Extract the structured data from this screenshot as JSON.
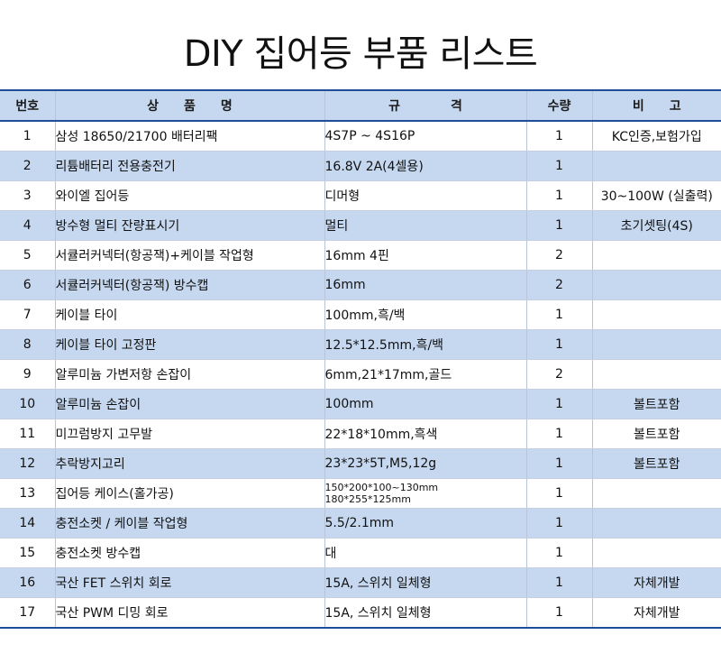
{
  "title": "DIY 집어등 부품 리스트",
  "headers": {
    "no": "번호",
    "name": "상　　품　　명",
    "spec": "규　　　　격",
    "qty": "수량",
    "note": "비　　고"
  },
  "rows": [
    {
      "no": "1",
      "name": "삼성 18650/21700 배터리팩",
      "spec": "4S7P ~ 4S16P",
      "qty": "1",
      "note": "KC인증,보험가입"
    },
    {
      "no": "2",
      "name": "리튬배터리 전용충전기",
      "spec": "16.8V 2A(4셀용)",
      "qty": "1",
      "note": ""
    },
    {
      "no": "3",
      "name": "와이엘 집어등",
      "spec": "디머형",
      "qty": "1",
      "note": "30~100W (실출력)"
    },
    {
      "no": "4",
      "name": "방수형 멀티 잔량표시기",
      "spec": "멀티",
      "qty": "1",
      "note": "초기셋팅(4S)"
    },
    {
      "no": "5",
      "name": "서큘러커넥터(항공잭)+케이블 작업형",
      "spec": "16mm 4핀",
      "qty": "2",
      "note": ""
    },
    {
      "no": "6",
      "name": "서큘러커넥터(항공잭) 방수캡",
      "spec": "16mm",
      "qty": "2",
      "note": ""
    },
    {
      "no": "7",
      "name": "케이블 타이",
      "spec": "100mm,흑/백",
      "qty": "1",
      "note": ""
    },
    {
      "no": "8",
      "name": "케이블 타이 고정판",
      "spec": "12.5*12.5mm,흑/백",
      "qty": "1",
      "note": ""
    },
    {
      "no": "9",
      "name": "알루미늄 가변저항 손잡이",
      "spec": "6mm,21*17mm,골드",
      "qty": "2",
      "note": ""
    },
    {
      "no": "10",
      "name": "알루미늄 손잡이",
      "spec": "100mm",
      "qty": "1",
      "note": "볼트포함"
    },
    {
      "no": "11",
      "name": "미끄럼방지 고무발",
      "spec": "22*18*10mm,흑색",
      "qty": "1",
      "note": "볼트포함"
    },
    {
      "no": "12",
      "name": "추락방지고리",
      "spec": "23*23*5T,M5,12g",
      "qty": "1",
      "note": "볼트포함"
    },
    {
      "no": "13",
      "name": "집어등 케이스(홀가공)",
      "spec": "150*200*100~130mm",
      "spec2": "180*255*125mm",
      "qty": "1",
      "note": ""
    },
    {
      "no": "14",
      "name": "충전소켓 / 케이블 작업형",
      "spec": "5.5/2.1mm",
      "qty": "1",
      "note": ""
    },
    {
      "no": "15",
      "name": "충전소켓 방수캡",
      "spec": "대",
      "qty": "1",
      "note": ""
    },
    {
      "no": "16",
      "name": "국산 FET 스위치 회로",
      "spec": "15A, 스위치 일체형",
      "qty": "1",
      "note": "자체개발"
    },
    {
      "no": "17",
      "name": "국산 PWM 디밍 회로",
      "spec": "15A, 스위치 일체형",
      "qty": "1",
      "note": "자체개발"
    }
  ],
  "colors": {
    "header_bg": "#c6d8f0",
    "shaded_row_bg": "#c6d8f0",
    "rule": "#1f4e99"
  }
}
